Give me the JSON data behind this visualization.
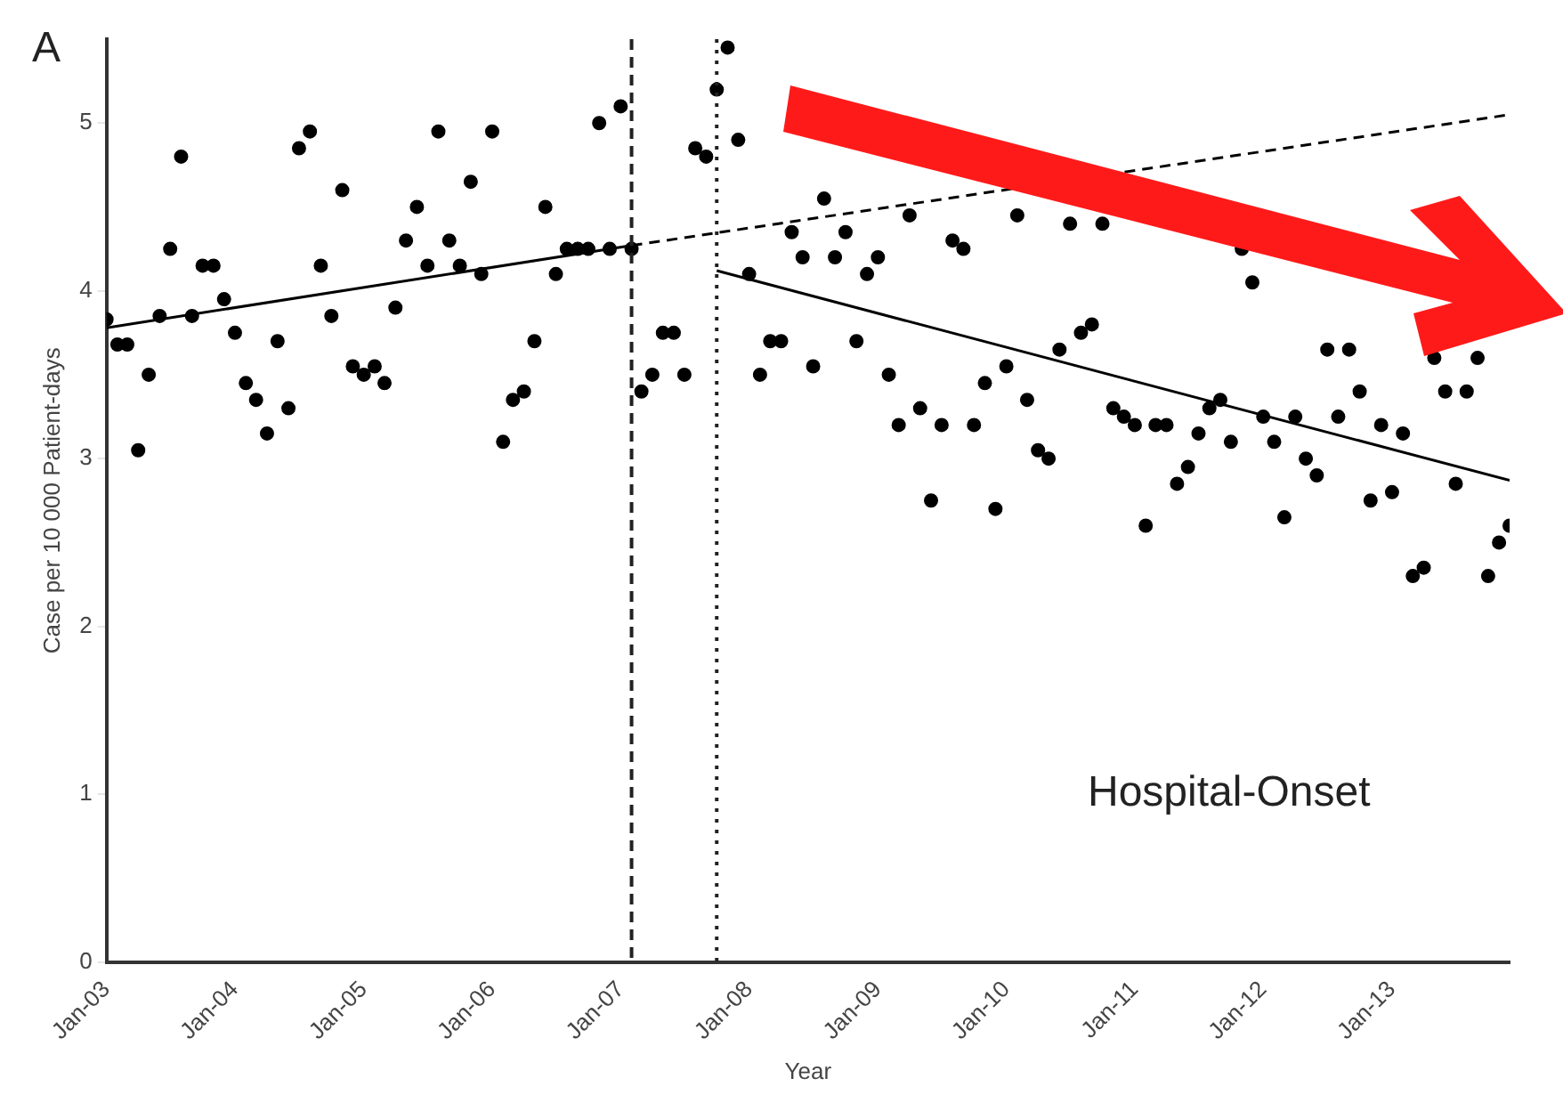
{
  "chart_data": {
    "type": "scatter",
    "xlabel": "Year",
    "ylabel": "Case per 10 000 Patient-days",
    "annotations": [
      "A",
      "Hospital-Onset"
    ],
    "xlim": [
      "2003-01",
      "2013-12"
    ],
    "xticks": [
      {
        "value": "2003-01",
        "label": "Jan-03"
      },
      {
        "value": "2004-01",
        "label": "Jan-04"
      },
      {
        "value": "2005-01",
        "label": "Jan-05"
      },
      {
        "value": "2006-01",
        "label": "Jan-06"
      },
      {
        "value": "2007-01",
        "label": "Jan-07"
      },
      {
        "value": "2008-01",
        "label": "Jan-08"
      },
      {
        "value": "2009-01",
        "label": "Jan-09"
      },
      {
        "value": "2010-01",
        "label": "Jan-10"
      },
      {
        "value": "2011-01",
        "label": "Jan-11"
      },
      {
        "value": "2012-01",
        "label": "Jan-12"
      },
      {
        "value": "2013-01",
        "label": "Jan-13"
      }
    ],
    "ylim": [
      0,
      5.5
    ],
    "yticks": [
      0,
      1,
      2,
      3,
      4,
      5
    ],
    "grid": false,
    "legend": false,
    "ref_lines": [
      {
        "axis": "x",
        "value": "2007-02",
        "line_style": "dashed",
        "color": "#222222"
      },
      {
        "axis": "x",
        "value": "2007-10",
        "line_style": "dotted",
        "color": "#222222"
      }
    ],
    "series": [
      {
        "marker": "circle",
        "color": "#000000",
        "x": [
          "2003-01",
          "2003-02",
          "2003-03",
          "2003-04",
          "2003-05",
          "2003-06",
          "2003-07",
          "2003-08",
          "2003-09",
          "2003-10",
          "2003-11",
          "2003-12",
          "2004-01",
          "2004-02",
          "2004-03",
          "2004-04",
          "2004-05",
          "2004-06",
          "2004-07",
          "2004-08",
          "2004-09",
          "2004-10",
          "2004-11",
          "2004-12",
          "2005-01",
          "2005-02",
          "2005-03",
          "2005-04",
          "2005-05",
          "2005-06",
          "2005-07",
          "2005-08",
          "2005-09",
          "2005-10",
          "2005-11",
          "2005-12",
          "2006-01",
          "2006-02",
          "2006-03",
          "2006-04",
          "2006-05",
          "2006-06",
          "2006-07",
          "2006-08",
          "2006-09",
          "2006-10",
          "2006-11",
          "2006-12",
          "2007-01",
          "2007-02",
          "2007-03",
          "2007-04",
          "2007-05",
          "2007-06",
          "2007-07",
          "2007-08",
          "2007-09",
          "2007-10",
          "2007-11",
          "2007-12",
          "2008-01",
          "2008-02",
          "2008-03",
          "2008-04",
          "2008-05",
          "2008-06",
          "2008-07",
          "2008-08",
          "2008-09",
          "2008-10",
          "2008-11",
          "2008-12",
          "2009-01",
          "2009-02",
          "2009-03",
          "2009-04",
          "2009-05",
          "2009-06",
          "2009-07",
          "2009-08",
          "2009-09",
          "2009-10",
          "2009-11",
          "2009-12",
          "2010-01",
          "2010-02",
          "2010-03",
          "2010-04",
          "2010-05",
          "2010-06",
          "2010-07",
          "2010-08",
          "2010-09",
          "2010-10",
          "2010-11",
          "2010-12",
          "2011-01",
          "2011-02",
          "2011-03",
          "2011-04",
          "2011-05",
          "2011-06",
          "2011-07",
          "2011-08",
          "2011-09",
          "2011-10",
          "2011-11",
          "2011-12",
          "2012-01",
          "2012-02",
          "2012-03",
          "2012-04",
          "2012-05",
          "2012-06",
          "2012-07",
          "2012-08",
          "2012-09",
          "2012-10",
          "2012-11",
          "2012-12",
          "2013-01",
          "2013-02",
          "2013-03",
          "2013-04",
          "2013-05",
          "2013-06",
          "2013-07",
          "2013-08",
          "2013-09",
          "2013-10",
          "2013-11",
          "2013-12"
        ],
        "values": [
          3.83,
          3.68,
          3.68,
          3.05,
          3.5,
          3.85,
          4.25,
          4.8,
          3.85,
          4.15,
          4.15,
          3.95,
          3.75,
          3.45,
          3.35,
          3.15,
          3.7,
          3.3,
          4.85,
          4.95,
          4.15,
          3.85,
          4.6,
          3.55,
          3.5,
          3.55,
          3.45,
          3.9,
          4.3,
          4.5,
          4.15,
          4.95,
          4.3,
          4.15,
          4.65,
          4.1,
          4.95,
          3.1,
          3.35,
          3.4,
          3.7,
          4.5,
          4.1,
          4.25,
          4.25,
          4.25,
          5.0,
          4.25,
          5.1,
          4.25,
          3.4,
          3.5,
          3.75,
          3.75,
          3.5,
          4.85,
          4.8,
          5.2,
          5.45,
          4.9,
          4.1,
          3.5,
          3.7,
          3.7,
          4.35,
          4.2,
          3.55,
          4.55,
          4.2,
          4.35,
          3.7,
          4.1,
          4.2,
          3.5,
          3.2,
          4.45,
          3.3,
          2.75,
          3.2,
          4.3,
          4.25,
          3.2,
          3.45,
          2.7,
          3.55,
          4.45,
          3.35,
          3.05,
          3.0,
          3.65,
          4.4,
          3.75,
          3.8,
          4.4,
          3.3,
          3.25,
          3.2,
          2.6,
          3.2,
          3.2,
          2.85,
          2.95,
          3.15,
          3.3,
          3.35,
          3.1,
          4.25,
          4.05,
          3.25,
          3.1,
          2.65,
          3.25,
          3.0,
          2.9,
          3.65,
          3.25,
          3.65,
          3.4,
          2.75,
          3.2,
          2.8,
          3.15,
          2.3,
          2.35,
          3.6,
          3.4,
          2.85,
          3.4,
          3.6,
          2.3,
          2.5,
          2.6
        ]
      },
      {
        "type": "line",
        "marker": "none",
        "line_style": "solid",
        "color": "#000000",
        "x": [
          "2003-01",
          "2007-02"
        ],
        "values": [
          3.78,
          4.27
        ]
      },
      {
        "type": "line",
        "marker": "none",
        "line_style": "dashed",
        "color": "#000000",
        "x": [
          "2007-02",
          "2013-12"
        ],
        "values": [
          4.27,
          5.05
        ]
      },
      {
        "type": "line",
        "marker": "none",
        "line_style": "solid",
        "color": "#000000",
        "x": [
          "2007-10",
          "2013-12"
        ],
        "values": [
          4.12,
          2.87
        ]
      }
    ]
  }
}
